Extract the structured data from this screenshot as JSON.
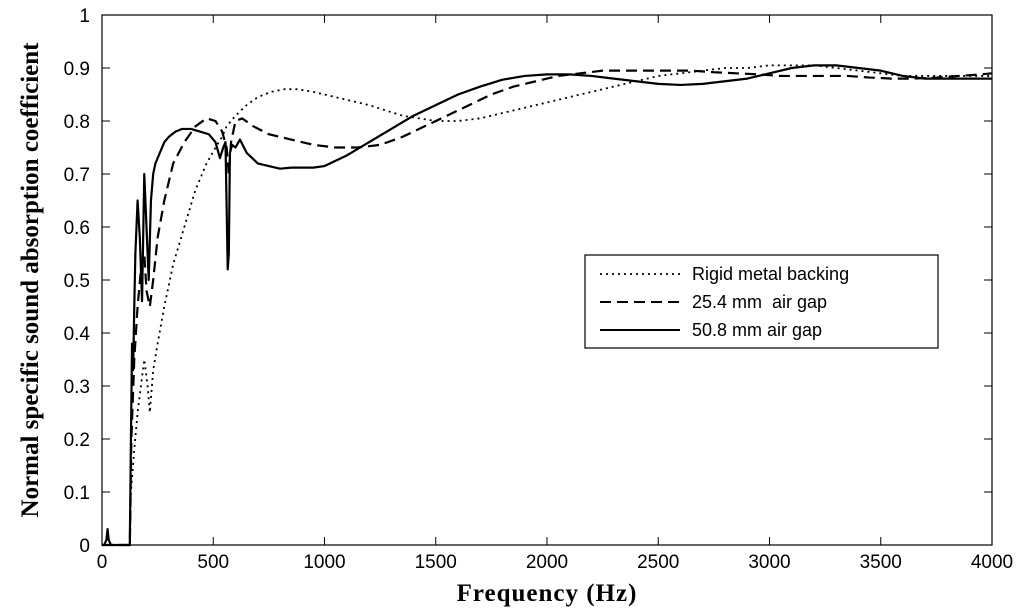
{
  "chart_data": {
    "type": "line",
    "title": "",
    "xlabel": "Frequency (Hz)",
    "ylabel": "Normal specific sound absorption coefficient",
    "xlim": [
      0,
      4000
    ],
    "ylim": [
      0,
      1
    ],
    "xticks": [
      0,
      500,
      1000,
      1500,
      2000,
      2500,
      3000,
      3500,
      4000
    ],
    "yticks": [
      0,
      0.1,
      0.2,
      0.3,
      0.4,
      0.5,
      0.6,
      0.7,
      0.8,
      0.9,
      1
    ],
    "grid": false,
    "legend_position": "right",
    "series": [
      {
        "name": "Rigid metal backing",
        "style": "dotted",
        "color": "#000000",
        "x": [
          0,
          125,
          130,
          145,
          160,
          175,
          190,
          205,
          215,
          230,
          250,
          280,
          320,
          370,
          420,
          470,
          510,
          540,
          560,
          580,
          600,
          650,
          700,
          760,
          820,
          880,
          950,
          1050,
          1200,
          1350,
          1500,
          1600,
          1700,
          1800,
          1900,
          2000,
          2100,
          2200,
          2300,
          2400,
          2500,
          2600,
          2700,
          2800,
          2900,
          3000,
          3100,
          3200,
          3300,
          3400,
          3500,
          3600,
          3700,
          3800,
          3900,
          4000
        ],
        "y": [
          0,
          0,
          0.1,
          0.18,
          0.25,
          0.3,
          0.35,
          0.3,
          0.25,
          0.33,
          0.38,
          0.45,
          0.53,
          0.6,
          0.67,
          0.72,
          0.75,
          0.77,
          0.79,
          0.8,
          0.81,
          0.83,
          0.845,
          0.855,
          0.86,
          0.86,
          0.855,
          0.845,
          0.83,
          0.81,
          0.8,
          0.8,
          0.805,
          0.815,
          0.825,
          0.835,
          0.845,
          0.855,
          0.865,
          0.875,
          0.885,
          0.89,
          0.895,
          0.9,
          0.9,
          0.905,
          0.905,
          0.905,
          0.9,
          0.895,
          0.89,
          0.885,
          0.885,
          0.885,
          0.885,
          0.885
        ]
      },
      {
        "name": "25.4 mm  air gap",
        "style": "dashed",
        "color": "#000000",
        "x": [
          0,
          125,
          132,
          145,
          160,
          175,
          190,
          200,
          215,
          230,
          250,
          280,
          320,
          370,
          420,
          470,
          510,
          540,
          560,
          570,
          580,
          600,
          630,
          680,
          750,
          850,
          950,
          1050,
          1150,
          1250,
          1350,
          1450,
          1550,
          1650,
          1750,
          1850,
          1950,
          2050,
          2150,
          2250,
          2350,
          2450,
          2550,
          2650,
          2750,
          2850,
          2950,
          3050,
          3150,
          3250,
          3350,
          3450,
          3550,
          3650,
          3750,
          3850,
          3950,
          4000
        ],
        "y": [
          0,
          0,
          0.2,
          0.35,
          0.45,
          0.52,
          0.55,
          0.48,
          0.45,
          0.5,
          0.58,
          0.65,
          0.72,
          0.76,
          0.79,
          0.805,
          0.8,
          0.78,
          0.75,
          0.7,
          0.76,
          0.8,
          0.805,
          0.79,
          0.775,
          0.765,
          0.755,
          0.75,
          0.75,
          0.755,
          0.77,
          0.79,
          0.81,
          0.83,
          0.85,
          0.865,
          0.875,
          0.885,
          0.89,
          0.895,
          0.895,
          0.895,
          0.895,
          0.895,
          0.892,
          0.89,
          0.888,
          0.885,
          0.885,
          0.885,
          0.885,
          0.882,
          0.88,
          0.88,
          0.882,
          0.885,
          0.888,
          0.89
        ]
      },
      {
        "name": "50.8 mm air gap",
        "style": "solid",
        "color": "#000000",
        "x": [
          0,
          10,
          20,
          25,
          30,
          40,
          50,
          125,
          130,
          135,
          140,
          145,
          150,
          160,
          170,
          180,
          190,
          200,
          210,
          220,
          230,
          240,
          260,
          280,
          300,
          330,
          360,
          400,
          440,
          480,
          510,
          530,
          545,
          555,
          565,
          570,
          575,
          585,
          600,
          620,
          650,
          700,
          750,
          800,
          850,
          900,
          950,
          1000,
          1100,
          1200,
          1300,
          1400,
          1500,
          1600,
          1700,
          1800,
          1900,
          2000,
          2100,
          2200,
          2300,
          2400,
          2500,
          2600,
          2700,
          2800,
          2900,
          3000,
          3100,
          3200,
          3300,
          3400,
          3500,
          3600,
          3700,
          3800,
          3900,
          4000
        ],
        "y": [
          0,
          0,
          0.01,
          0.03,
          0.01,
          0,
          0,
          0,
          0.2,
          0.38,
          0.33,
          0.45,
          0.55,
          0.65,
          0.58,
          0.46,
          0.7,
          0.6,
          0.5,
          0.65,
          0.7,
          0.72,
          0.74,
          0.76,
          0.77,
          0.78,
          0.785,
          0.785,
          0.78,
          0.775,
          0.76,
          0.73,
          0.75,
          0.76,
          0.52,
          0.55,
          0.74,
          0.755,
          0.75,
          0.765,
          0.74,
          0.72,
          0.715,
          0.71,
          0.712,
          0.712,
          0.712,
          0.715,
          0.735,
          0.76,
          0.785,
          0.81,
          0.83,
          0.85,
          0.865,
          0.878,
          0.885,
          0.888,
          0.888,
          0.885,
          0.88,
          0.875,
          0.87,
          0.868,
          0.87,
          0.875,
          0.88,
          0.89,
          0.9,
          0.905,
          0.905,
          0.9,
          0.895,
          0.885,
          0.88,
          0.88,
          0.88,
          0.88
        ]
      }
    ]
  }
}
